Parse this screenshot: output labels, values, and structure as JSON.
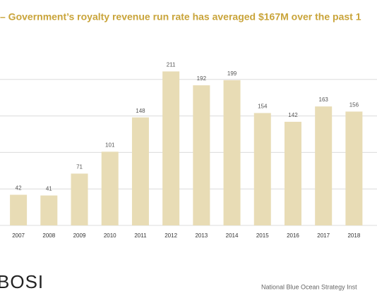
{
  "chart_data": {
    "type": "bar",
    "title": "– Government’s royalty revenue run rate has averaged $167M over the past 1",
    "categories": [
      "2007",
      "2008",
      "2009",
      "2010",
      "2011",
      "2012",
      "2013",
      "2014",
      "2015",
      "2016",
      "2017",
      "2018"
    ],
    "values": [
      42,
      41,
      71,
      101,
      148,
      211,
      192,
      199,
      154,
      142,
      163,
      156
    ],
    "color": "#e8dcb5",
    "ylim": [
      0,
      250
    ],
    "yticks": [
      0,
      50,
      100,
      150,
      200
    ],
    "grid": true,
    "brand": "BOSI",
    "footer": "National Blue Ocean Strategy Inst"
  }
}
